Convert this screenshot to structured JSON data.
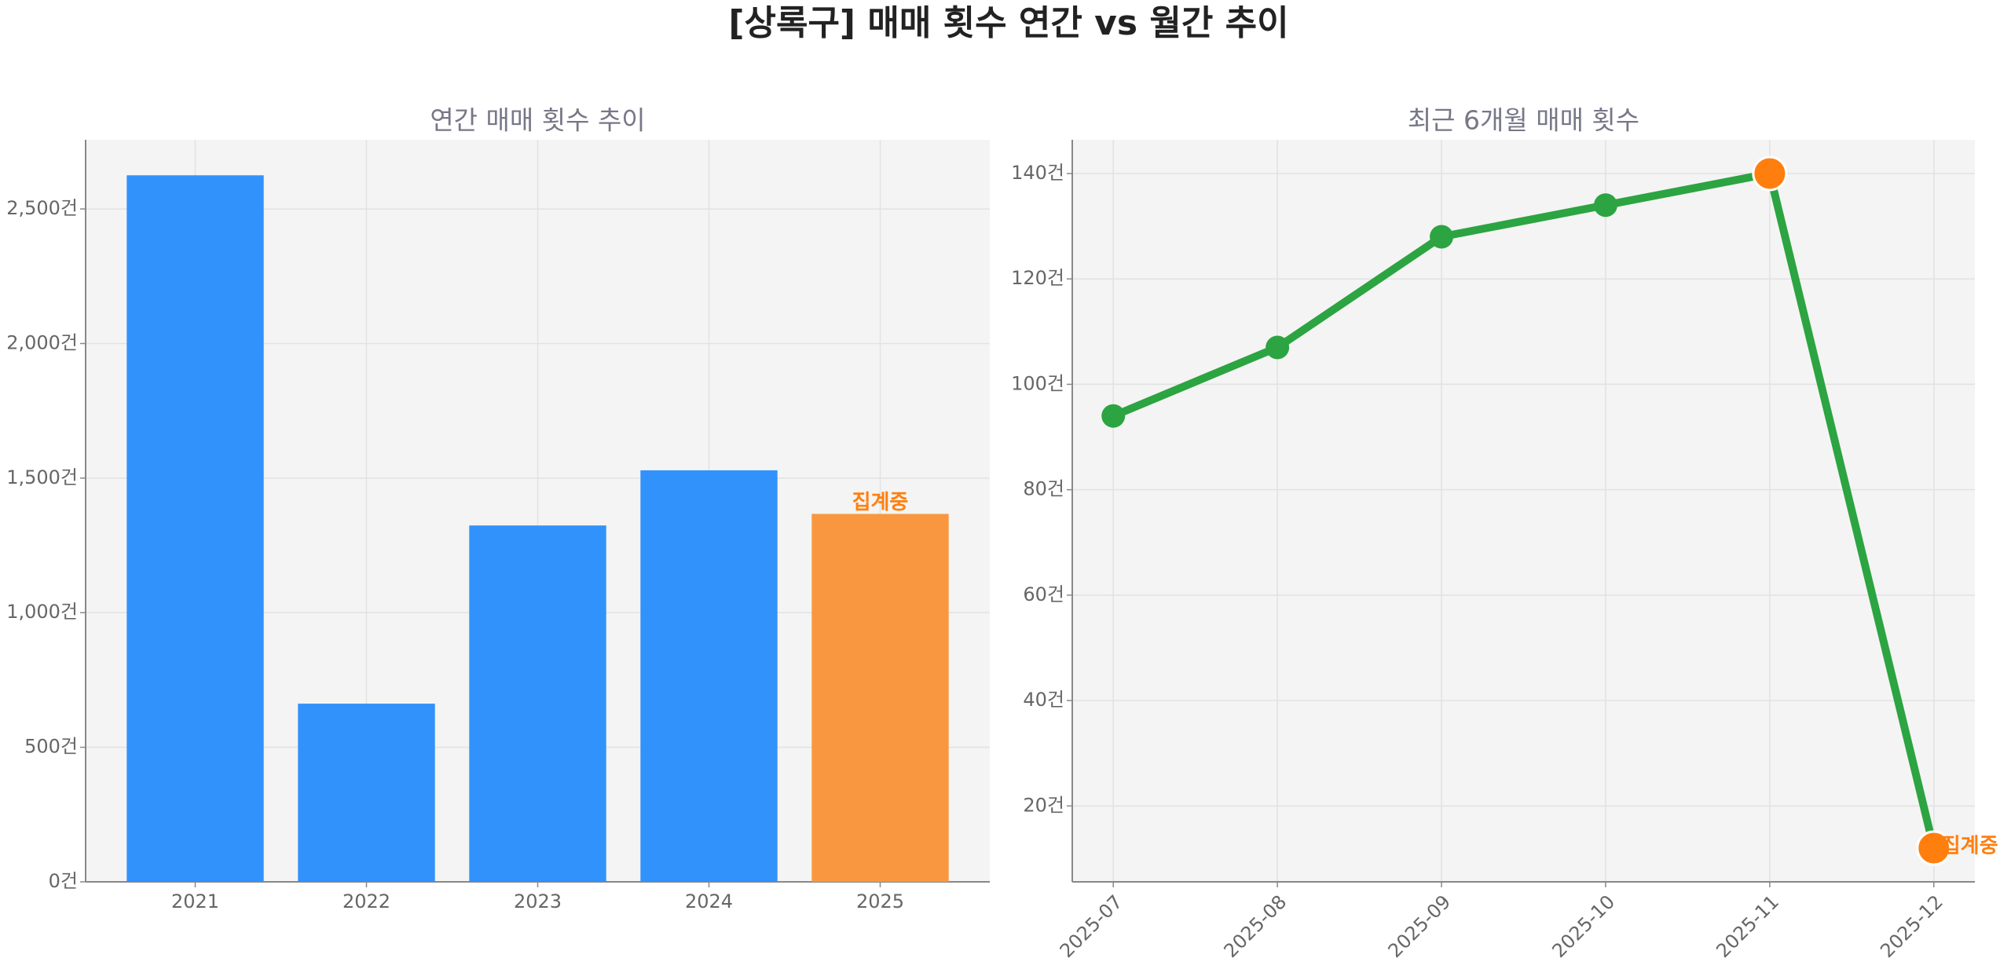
{
  "title": "[상록구] 매매 횟수 연간 vs 월간 추이",
  "chart_data": [
    {
      "type": "bar",
      "title": "연간 매매 횟수 추이",
      "categories": [
        "2021",
        "2022",
        "2023",
        "2024",
        "2025"
      ],
      "values": [
        2625,
        662,
        1324,
        1529,
        1367
      ],
      "colors": [
        "#3192fc",
        "#3192fc",
        "#3192fc",
        "#3192fc",
        "#f99740"
      ],
      "annotation": "집계중",
      "ylim": [
        0,
        2757
      ],
      "yticks": [
        {
          "value": 0,
          "label": "0건"
        },
        {
          "value": 500,
          "label": "500건"
        },
        {
          "value": 1000,
          "label": "1,000건"
        },
        {
          "value": 1500,
          "label": "1,500건"
        },
        {
          "value": 2000,
          "label": "2,000건"
        },
        {
          "value": 2500,
          "label": "2,500건"
        }
      ],
      "grid": true
    },
    {
      "type": "line",
      "title": "최근 6개월 매매 횟수",
      "categories": [
        "2025-07",
        "2025-08",
        "2025-09",
        "2025-10",
        "2025-11",
        "2025-12"
      ],
      "values": [
        94,
        107,
        128,
        134,
        140,
        12
      ],
      "color": "#2ca441",
      "marker_colors": [
        "#2ca441",
        "#2ca441",
        "#2ca441",
        "#2ca441",
        "#ff7f0e",
        "#ff7f0e"
      ],
      "annotation": "집계중",
      "ylim": [
        5.6,
        146.4
      ],
      "yticks": [
        {
          "value": 20,
          "label": "20건"
        },
        {
          "value": 40,
          "label": "40건"
        },
        {
          "value": 60,
          "label": "60건"
        },
        {
          "value": 80,
          "label": "80건"
        },
        {
          "value": 100,
          "label": "100건"
        },
        {
          "value": 120,
          "label": "120건"
        },
        {
          "value": 140,
          "label": "140건"
        }
      ],
      "grid": true
    }
  ]
}
